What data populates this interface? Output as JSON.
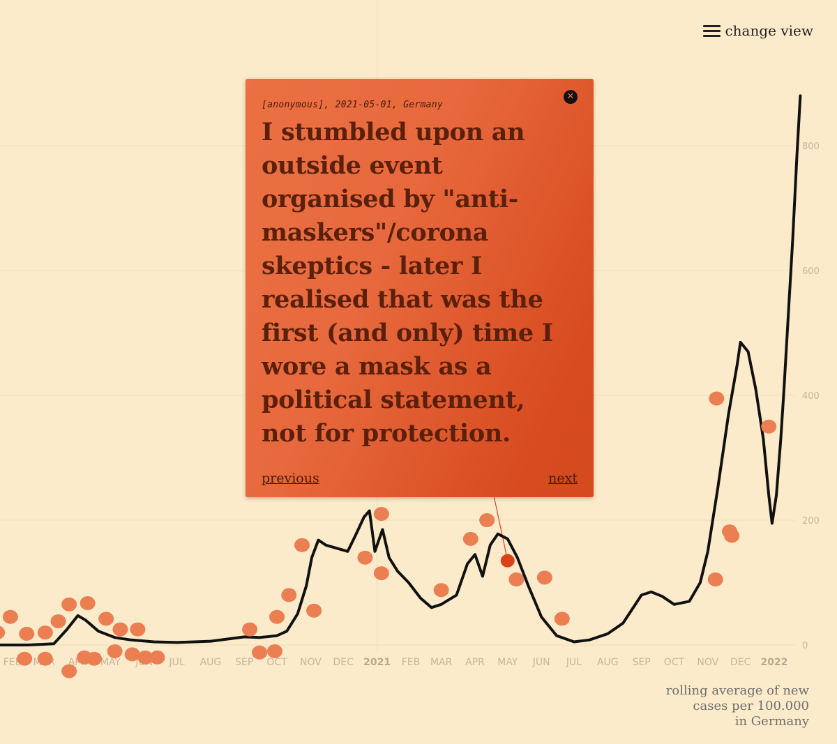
{
  "menu": {
    "label": "change view",
    "icon": "hamburger-menu-icon"
  },
  "caption": {
    "lines": [
      "rolling average of new",
      "cases per 100.000",
      "in Germany"
    ]
  },
  "story": {
    "author": "[anonymous]",
    "date": "2021-05-01",
    "country": "Germany",
    "meta": "[anonymous], 2021-05-01, Germany",
    "quote": "I stumbled upon an outside event organised by \"anti-maskers\"/corona skeptics - later I realised that was the first (and only) time I wore a mask as a political statement, not for protection.",
    "previous_label": "previous",
    "next_label": "next",
    "close_icon": "close-icon"
  },
  "colors": {
    "background": "#fcebca",
    "line": "#111111",
    "dot": "#ec7f52",
    "active_dot": "#d9431b",
    "popup": "#e3623a",
    "grid": "#f1dcbc"
  },
  "chart_data": {
    "type": "line",
    "title": "",
    "xlabel": "",
    "ylabel": "",
    "y_axis_side": "right",
    "ylim": [
      0,
      880
    ],
    "yticks": [
      0,
      200,
      400,
      600,
      800
    ],
    "grid": true,
    "x_ticks": [
      {
        "label": "FEB",
        "date": "2020-02-01",
        "bold": false
      },
      {
        "label": "MAR",
        "date": "2020-03-01",
        "bold": false
      },
      {
        "label": "APR",
        "date": "2020-04-01",
        "bold": false
      },
      {
        "label": "MAY",
        "date": "2020-05-01",
        "bold": false
      },
      {
        "label": "JUN",
        "date": "2020-06-01",
        "bold": false
      },
      {
        "label": "JUL",
        "date": "2020-07-01",
        "bold": false
      },
      {
        "label": "AUG",
        "date": "2020-08-01",
        "bold": false
      },
      {
        "label": "SEP",
        "date": "2020-09-01",
        "bold": false
      },
      {
        "label": "OCT",
        "date": "2020-10-01",
        "bold": false
      },
      {
        "label": "NOV",
        "date": "2020-11-01",
        "bold": false
      },
      {
        "label": "DEC",
        "date": "2020-12-01",
        "bold": false
      },
      {
        "label": "2021",
        "date": "2021-01-01",
        "bold": true
      },
      {
        "label": "FEB",
        "date": "2021-02-01",
        "bold": false
      },
      {
        "label": "MAR",
        "date": "2021-03-01",
        "bold": false
      },
      {
        "label": "APR",
        "date": "2021-04-01",
        "bold": false
      },
      {
        "label": "MAY",
        "date": "2021-05-01",
        "bold": false
      },
      {
        "label": "JUN",
        "date": "2021-06-01",
        "bold": false
      },
      {
        "label": "JUL",
        "date": "2021-07-01",
        "bold": false
      },
      {
        "label": "AUG",
        "date": "2021-08-01",
        "bold": false
      },
      {
        "label": "SEP",
        "date": "2021-09-01",
        "bold": false
      },
      {
        "label": "OCT",
        "date": "2021-10-01",
        "bold": false
      },
      {
        "label": "NOV",
        "date": "2021-11-01",
        "bold": false
      },
      {
        "label": "DEC",
        "date": "2021-12-01",
        "bold": false
      },
      {
        "label": "2022",
        "date": "2022-01-01",
        "bold": true
      }
    ],
    "series": [
      {
        "values": [
          [
            "2020-01-15",
            0
          ],
          [
            "2020-02-15",
            0
          ],
          [
            "2020-03-10",
            2
          ],
          [
            "2020-03-22",
            25
          ],
          [
            "2020-04-01",
            47
          ],
          [
            "2020-04-08",
            40
          ],
          [
            "2020-04-20",
            22
          ],
          [
            "2020-05-05",
            12
          ],
          [
            "2020-05-20",
            8
          ],
          [
            "2020-06-10",
            5
          ],
          [
            "2020-07-01",
            4
          ],
          [
            "2020-08-01",
            6
          ],
          [
            "2020-09-01",
            13
          ],
          [
            "2020-09-15",
            12
          ],
          [
            "2020-10-01",
            15
          ],
          [
            "2020-10-10",
            22
          ],
          [
            "2020-10-20",
            50
          ],
          [
            "2020-10-28",
            95
          ],
          [
            "2020-11-02",
            140
          ],
          [
            "2020-11-08",
            168
          ],
          [
            "2020-11-15",
            160
          ],
          [
            "2020-11-25",
            155
          ],
          [
            "2020-12-05",
            150
          ],
          [
            "2020-12-12",
            175
          ],
          [
            "2020-12-20",
            205
          ],
          [
            "2020-12-25",
            215
          ],
          [
            "2020-12-30",
            150
          ],
          [
            "2021-01-06",
            185
          ],
          [
            "2021-01-12",
            140
          ],
          [
            "2021-01-20",
            118
          ],
          [
            "2021-01-30",
            100
          ],
          [
            "2021-02-10",
            75
          ],
          [
            "2021-02-20",
            60
          ],
          [
            "2021-03-01",
            65
          ],
          [
            "2021-03-15",
            80
          ],
          [
            "2021-03-25",
            130
          ],
          [
            "2021-04-01",
            145
          ],
          [
            "2021-04-08",
            110
          ],
          [
            "2021-04-15",
            160
          ],
          [
            "2021-04-22",
            178
          ],
          [
            "2021-05-01",
            170
          ],
          [
            "2021-05-10",
            140
          ],
          [
            "2021-05-20",
            95
          ],
          [
            "2021-06-01",
            45
          ],
          [
            "2021-06-15",
            15
          ],
          [
            "2021-07-01",
            5
          ],
          [
            "2021-07-15",
            8
          ],
          [
            "2021-08-01",
            18
          ],
          [
            "2021-08-15",
            35
          ],
          [
            "2021-09-01",
            80
          ],
          [
            "2021-09-10",
            85
          ],
          [
            "2021-09-20",
            78
          ],
          [
            "2021-10-01",
            65
          ],
          [
            "2021-10-15",
            70
          ],
          [
            "2021-10-25",
            100
          ],
          [
            "2021-11-01",
            150
          ],
          [
            "2021-11-10",
            250
          ],
          [
            "2021-11-20",
            370
          ],
          [
            "2021-11-28",
            450
          ],
          [
            "2021-12-01",
            485
          ],
          [
            "2021-12-08",
            470
          ],
          [
            "2021-12-15",
            410
          ],
          [
            "2021-12-22",
            330
          ],
          [
            "2021-12-27",
            240
          ],
          [
            "2021-12-30",
            195
          ],
          [
            "2022-01-03",
            240
          ],
          [
            "2022-01-07",
            330
          ],
          [
            "2022-01-10",
            410
          ],
          [
            "2022-01-15",
            560
          ],
          [
            "2022-01-18",
            650
          ],
          [
            "2022-01-22",
            790
          ],
          [
            "2022-01-25",
            880
          ]
        ]
      }
    ],
    "story_dots": [
      [
        "2020-01-18",
        20
      ],
      [
        "2020-01-30",
        45
      ],
      [
        "2020-02-14",
        18
      ],
      [
        "2020-03-02",
        20
      ],
      [
        "2020-03-14",
        38
      ],
      [
        "2020-03-24",
        65
      ],
      [
        "2020-04-10",
        67
      ],
      [
        "2020-04-27",
        42
      ],
      [
        "2020-05-10",
        25
      ],
      [
        "2020-05-26",
        25
      ],
      [
        "2020-09-06",
        25
      ],
      [
        "2020-10-01",
        45
      ],
      [
        "2020-10-12",
        80
      ],
      [
        "2020-10-24",
        160
      ],
      [
        "2020-11-04",
        55
      ],
      [
        "2020-12-21",
        140
      ],
      [
        "2021-01-05",
        210
      ],
      [
        "2021-01-05",
        115
      ],
      [
        "2021-03-01",
        88
      ],
      [
        "2021-03-28",
        170
      ],
      [
        "2021-04-12",
        200
      ],
      [
        "2021-05-09",
        105
      ],
      [
        "2021-06-04",
        108
      ],
      [
        "2021-06-20",
        42
      ],
      [
        "2021-11-08",
        105
      ],
      [
        "2021-11-09",
        395
      ],
      [
        "2021-11-21",
        182
      ],
      [
        "2021-11-23",
        175
      ],
      [
        "2021-12-27",
        350
      ],
      [
        "2020-01-12",
        -45
      ],
      [
        "2020-02-12",
        -22
      ],
      [
        "2020-03-02",
        -22
      ],
      [
        "2020-03-24",
        -42
      ],
      [
        "2020-04-07",
        -20
      ],
      [
        "2020-04-16",
        -22
      ],
      [
        "2020-05-05",
        -10
      ],
      [
        "2020-05-21",
        -15
      ],
      [
        "2020-06-02",
        -20
      ],
      [
        "2020-06-13",
        -20
      ],
      [
        "2020-09-15",
        -12
      ],
      [
        "2020-09-29",
        -10
      ]
    ],
    "active_dot": [
      "2021-05-01",
      135
    ]
  }
}
